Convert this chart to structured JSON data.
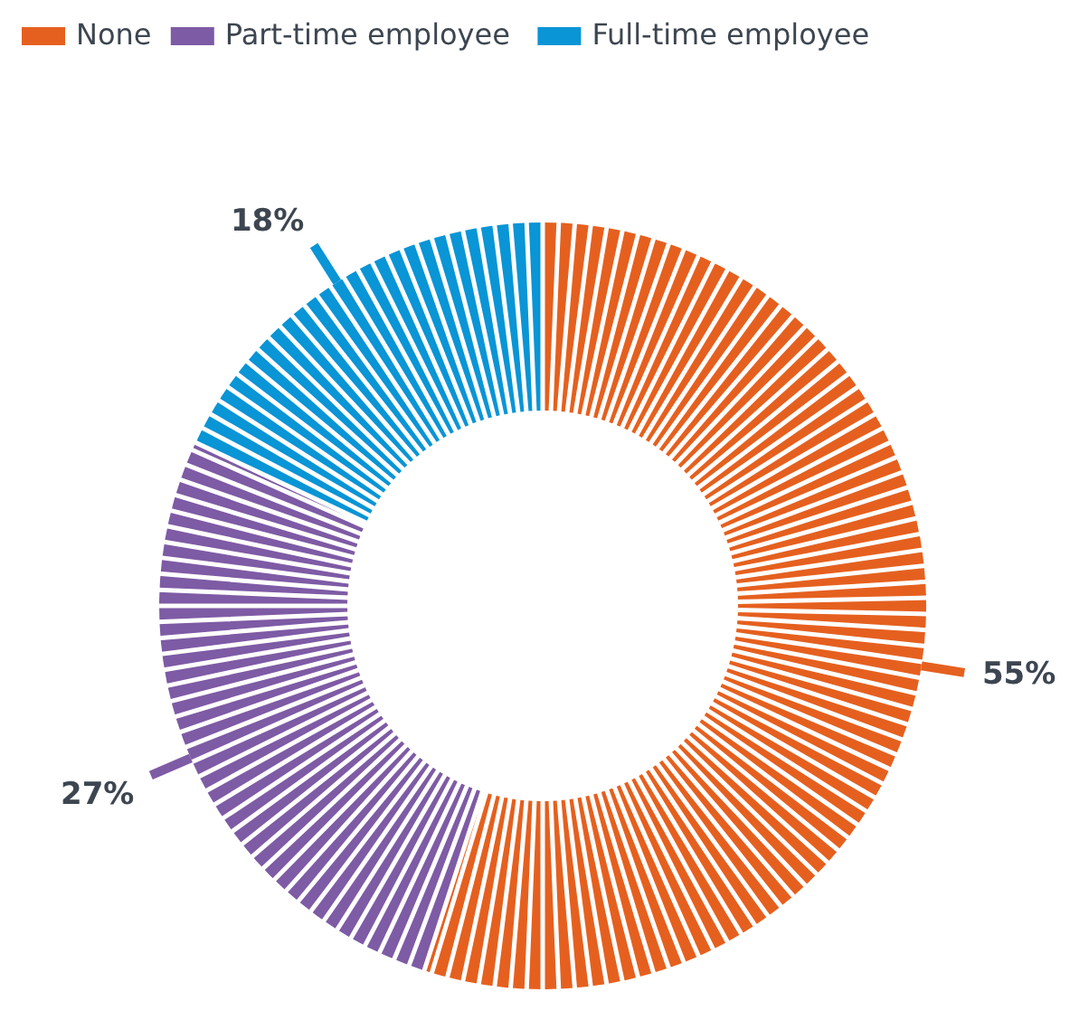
{
  "chart_data": {
    "type": "donut",
    "categories": [
      "None",
      "Part-time employee",
      "Full-time employee"
    ],
    "values": [
      55,
      27,
      18
    ],
    "colors": [
      "#e5601f",
      "#7e5ba5",
      "#0995d6"
    ],
    "value_labels": [
      "55%",
      "27%",
      "18%"
    ],
    "legend": "top"
  }
}
